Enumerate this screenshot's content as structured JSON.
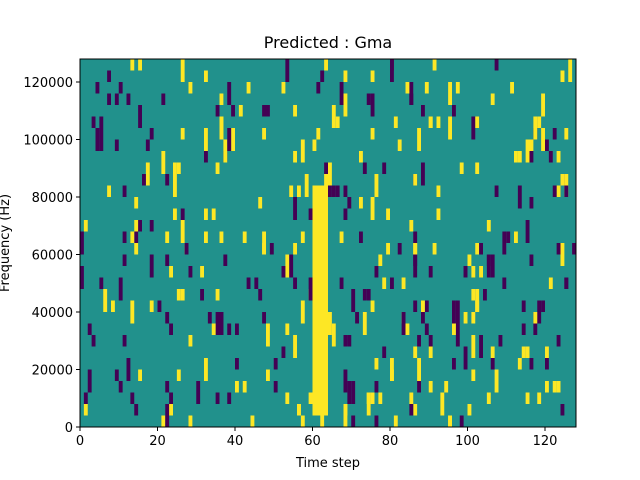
{
  "chart_data": {
    "type": "heatmap",
    "title": "Predicted : Gma",
    "xlabel": "Time step",
    "ylabel": "Frequency (Hz)",
    "xlim": [
      0,
      128
    ],
    "ylim": [
      0,
      128000
    ],
    "x_ticks": [
      0,
      20,
      40,
      60,
      80,
      100,
      120
    ],
    "y_ticks": [
      0,
      20000,
      40000,
      60000,
      80000,
      100000,
      120000
    ],
    "x_tick_labels": [
      "0",
      "20",
      "40",
      "60",
      "80",
      "100",
      "120"
    ],
    "y_tick_labels": [
      "0",
      "20000",
      "40000",
      "60000",
      "80000",
      "100000",
      "120000"
    ],
    "grid": false,
    "colormap": "viridis",
    "value_range": [
      -1,
      1
    ],
    "colors": {
      "low": "#440154",
      "mid": "#21918c",
      "high": "#fde725"
    },
    "background_value": 0,
    "cell_size": {
      "time_steps": 1,
      "frequency_hz": 4000
    },
    "dense_band": {
      "value": 1,
      "x_range": [
        60,
        64
      ],
      "y_range": [
        4000,
        84000
      ]
    },
    "cells": [
      {
        "x": 10,
        "y": 116000,
        "v": -1
      },
      {
        "x": 15,
        "y": 124000,
        "v": 1
      },
      {
        "x": 17,
        "y": 96000,
        "v": -1
      },
      {
        "x": 22,
        "y": 64000,
        "v": 1
      },
      {
        "x": 35,
        "y": 88000,
        "v": 1
      },
      {
        "x": 38,
        "y": 32000,
        "v": -1
      },
      {
        "x": 40,
        "y": 20000,
        "v": -1
      },
      {
        "x": 46,
        "y": 44000,
        "v": -1
      },
      {
        "x": 48,
        "y": 16000,
        "v": 1
      },
      {
        "x": 53,
        "y": 8000,
        "v": 1
      },
      {
        "x": 55,
        "y": 60000,
        "v": 1
      },
      {
        "x": 57,
        "y": 0,
        "v": 1
      },
      {
        "x": 60,
        "y": 96000,
        "v": 1
      },
      {
        "x": 61,
        "y": 100000,
        "v": 1
      },
      {
        "x": 64,
        "y": 80000,
        "v": -1
      },
      {
        "x": 65,
        "y": 80000,
        "v": -1
      },
      {
        "x": 66,
        "y": 80000,
        "v": -1
      },
      {
        "x": 67,
        "y": 48000,
        "v": -1
      },
      {
        "x": 68,
        "y": 28000,
        "v": -1
      },
      {
        "x": 70,
        "y": 44000,
        "v": -1
      },
      {
        "x": 70,
        "y": 40000,
        "v": -1
      },
      {
        "x": 71,
        "y": 36000,
        "v": -1
      },
      {
        "x": 72,
        "y": 64000,
        "v": -1
      },
      {
        "x": 74,
        "y": 8000,
        "v": 1
      },
      {
        "x": 76,
        "y": 12000,
        "v": -1
      },
      {
        "x": 78,
        "y": 24000,
        "v": -1
      },
      {
        "x": 80,
        "y": 16000,
        "v": 1
      },
      {
        "x": 82,
        "y": 60000,
        "v": -1
      },
      {
        "x": 86,
        "y": 24000,
        "v": 1
      },
      {
        "x": 88,
        "y": 36000,
        "v": -1
      },
      {
        "x": 90,
        "y": 12000,
        "v": 1
      },
      {
        "x": 92,
        "y": 72000,
        "v": 1
      },
      {
        "x": 96,
        "y": 20000,
        "v": -1
      },
      {
        "x": 99,
        "y": 52000,
        "v": -1
      },
      {
        "x": 102,
        "y": 40000,
        "v": 1
      },
      {
        "x": 105,
        "y": 8000,
        "v": 1
      },
      {
        "x": 110,
        "y": 64000,
        "v": -1
      },
      {
        "x": 114,
        "y": 32000,
        "v": -1
      },
      {
        "x": 116,
        "y": 20000,
        "v": -1
      },
      {
        "x": 118,
        "y": 104000,
        "v": 1
      },
      {
        "x": 120,
        "y": 96000,
        "v": -1
      },
      {
        "x": 124,
        "y": 84000,
        "v": 1
      },
      {
        "x": 127,
        "y": 60000,
        "v": -1
      }
    ]
  }
}
